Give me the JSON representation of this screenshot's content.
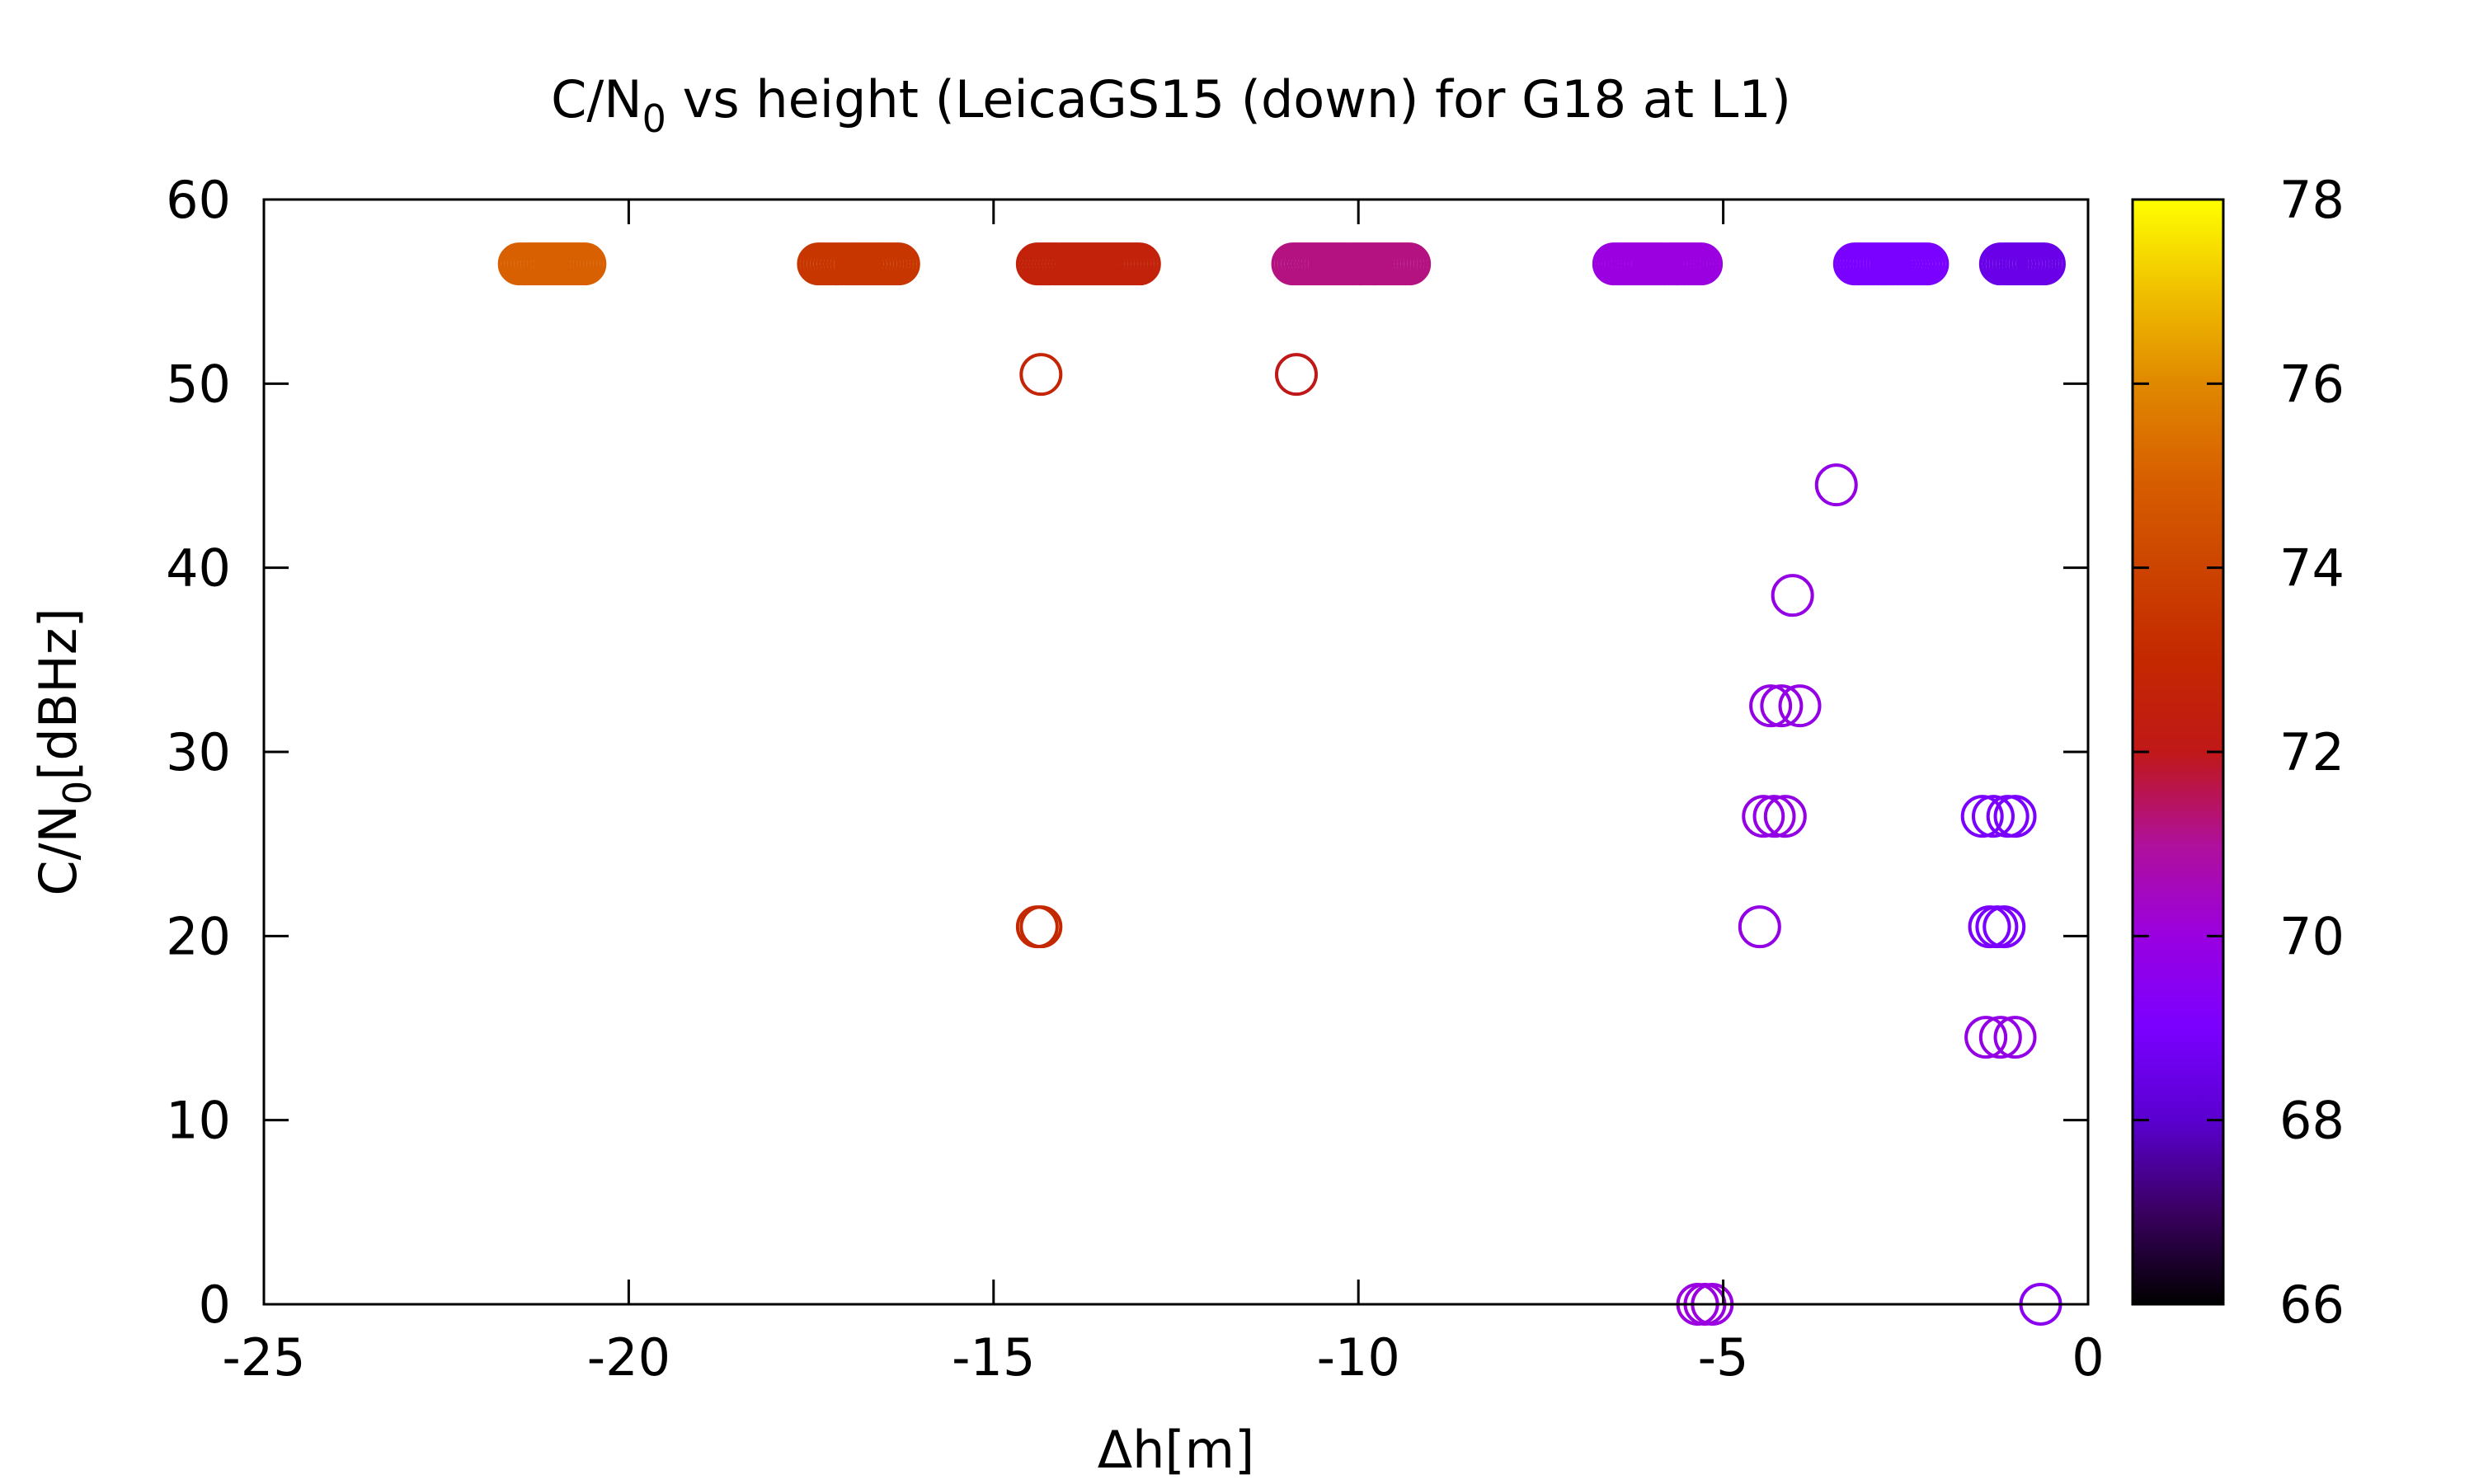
{
  "chart_data": {
    "type": "scatter",
    "title": {
      "prefix": "C/N",
      "subscript": "0",
      "suffix": " vs height (LeicaGS15 (down) for G18 at L1)"
    },
    "xlabel": "Δh[m]",
    "ylabel": {
      "prefix": "C/N",
      "subscript": "0",
      "suffix": "[dBHz]"
    },
    "xlim": [
      -25,
      0
    ],
    "ylim": [
      0,
      60
    ],
    "x_ticks": [
      "-25",
      "-20",
      "-15",
      "-10",
      "-5",
      "0"
    ],
    "y_ticks": [
      "0",
      "10",
      "20",
      "30",
      "40",
      "50",
      "60"
    ],
    "colorbar": {
      "range": [
        66,
        78
      ],
      "ticks": [
        "66",
        "68",
        "70",
        "72",
        "74",
        "76",
        "78"
      ],
      "stops": [
        {
          "value": 66,
          "color": "#000000"
        },
        {
          "value": 67,
          "color": "#3a0060"
        },
        {
          "value": 68,
          "color": "#5a00d0"
        },
        {
          "value": 69,
          "color": "#7a00ff"
        },
        {
          "value": 70,
          "color": "#9a00e0"
        },
        {
          "value": 71,
          "color": "#b0109a"
        },
        {
          "value": 72,
          "color": "#c01818"
        },
        {
          "value": 73,
          "color": "#c42800"
        },
        {
          "value": 74,
          "color": "#cc4400"
        },
        {
          "value": 75,
          "color": "#d86000"
        },
        {
          "value": 76,
          "color": "#e08800"
        },
        {
          "value": 77,
          "color": "#f0c000"
        },
        {
          "value": 78,
          "color": "#ffff00"
        }
      ]
    },
    "grid": false,
    "legend": "none",
    "marker": "open-circle",
    "clusters": [
      {
        "x_start": -21.5,
        "x_end": -20.6,
        "y": 56.5,
        "color_value": 75.0
      },
      {
        "x_start": -17.4,
        "x_end": -16.3,
        "y": 56.5,
        "color_value": 73.5
      },
      {
        "x_start": -14.4,
        "x_end": -13.0,
        "y": 56.5,
        "color_value": 72.6
      },
      {
        "x_start": -10.9,
        "x_end": -9.3,
        "y": 56.5,
        "color_value": 71.2
      },
      {
        "x_start": -6.5,
        "x_end": -5.3,
        "y": 56.5,
        "color_value": 70.0
      },
      {
        "x_start": -3.2,
        "x_end": -2.2,
        "y": 56.5,
        "color_value": 69.0
      },
      {
        "x_start": -1.2,
        "x_end": -0.6,
        "y": 56.5,
        "color_value": 68.5
      }
    ],
    "points": [
      {
        "x": -14.35,
        "y": 50.5,
        "color_value": 72.8
      },
      {
        "x": -10.85,
        "y": 50.5,
        "color_value": 72.0
      },
      {
        "x": -3.45,
        "y": 44.5,
        "color_value": 69.8
      },
      {
        "x": -4.05,
        "y": 38.5,
        "color_value": 69.8
      },
      {
        "x": -4.35,
        "y": 32.5,
        "color_value": 69.8
      },
      {
        "x": -4.2,
        "y": 32.5,
        "color_value": 69.8
      },
      {
        "x": -3.95,
        "y": 32.5,
        "color_value": 69.8
      },
      {
        "x": -4.45,
        "y": 26.5,
        "color_value": 69.8
      },
      {
        "x": -4.3,
        "y": 26.5,
        "color_value": 69.8
      },
      {
        "x": -4.15,
        "y": 26.5,
        "color_value": 69.8
      },
      {
        "x": -1.45,
        "y": 26.5,
        "color_value": 69.0
      },
      {
        "x": -1.3,
        "y": 26.5,
        "color_value": 69.0
      },
      {
        "x": -1.1,
        "y": 26.5,
        "color_value": 69.0
      },
      {
        "x": -1.0,
        "y": 26.5,
        "color_value": 69.0
      },
      {
        "x": -14.4,
        "y": 20.5,
        "color_value": 73.0
      },
      {
        "x": -14.35,
        "y": 20.5,
        "color_value": 73.0
      },
      {
        "x": -4.5,
        "y": 20.5,
        "color_value": 69.8
      },
      {
        "x": -1.35,
        "y": 20.5,
        "color_value": 69.0
      },
      {
        "x": -1.25,
        "y": 20.5,
        "color_value": 69.0
      },
      {
        "x": -1.15,
        "y": 20.5,
        "color_value": 69.0
      },
      {
        "x": -1.4,
        "y": 14.5,
        "color_value": 69.8
      },
      {
        "x": -1.2,
        "y": 14.5,
        "color_value": 69.8
      },
      {
        "x": -1.0,
        "y": 14.5,
        "color_value": 69.8
      },
      {
        "x": -5.35,
        "y": 0.0,
        "color_value": 70.0
      },
      {
        "x": -5.25,
        "y": 0.0,
        "color_value": 70.0
      },
      {
        "x": -5.15,
        "y": 0.0,
        "color_value": 70.0
      },
      {
        "x": -0.65,
        "y": 0.0,
        "color_value": 69.5
      }
    ]
  }
}
